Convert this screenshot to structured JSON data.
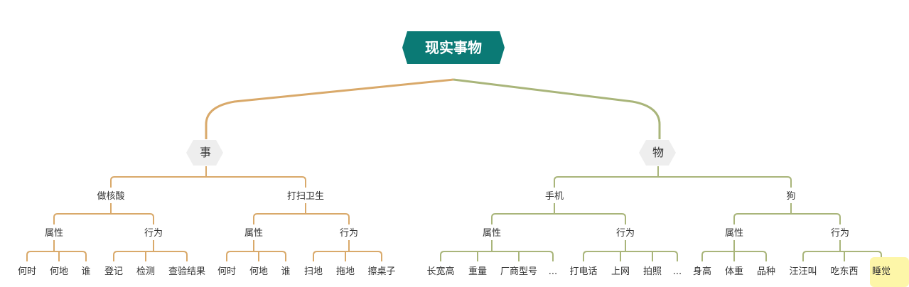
{
  "mindmap": {
    "root": {
      "label": "现实事物"
    },
    "colors": {
      "root_fill": "#0b7a75",
      "left_branch": "#d9a96a",
      "right_branch": "#a9b57a",
      "l1_fill": "#eeeeee",
      "highlight": "#fdf6a8"
    },
    "left": {
      "label": "事",
      "children": [
        {
          "label": "做核酸",
          "children": [
            {
              "label": "属性",
              "children": [
                "何时",
                "何地",
                "谁"
              ]
            },
            {
              "label": "行为",
              "children": [
                "登记",
                "检测",
                "查验结果"
              ]
            }
          ]
        },
        {
          "label": "打扫卫生",
          "children": [
            {
              "label": "属性",
              "children": [
                "何时",
                "何地",
                "谁"
              ]
            },
            {
              "label": "行为",
              "children": [
                "扫地",
                "拖地",
                "擦桌子"
              ]
            }
          ]
        }
      ]
    },
    "right": {
      "label": "物",
      "children": [
        {
          "label": "手机",
          "children": [
            {
              "label": "属性",
              "children": [
                "长宽高",
                "重量",
                "厂商型号",
                "..."
              ]
            },
            {
              "label": "行为",
              "children": [
                "打电话",
                "上网",
                "拍照",
                "..."
              ]
            }
          ]
        },
        {
          "label": "狗",
          "children": [
            {
              "label": "属性",
              "children": [
                "身高",
                "体重",
                "品种"
              ]
            },
            {
              "label": "行为",
              "children": [
                "汪汪叫",
                "吃东西",
                "睡觉"
              ]
            }
          ]
        }
      ]
    },
    "highlighted_leaf": "睡觉"
  }
}
